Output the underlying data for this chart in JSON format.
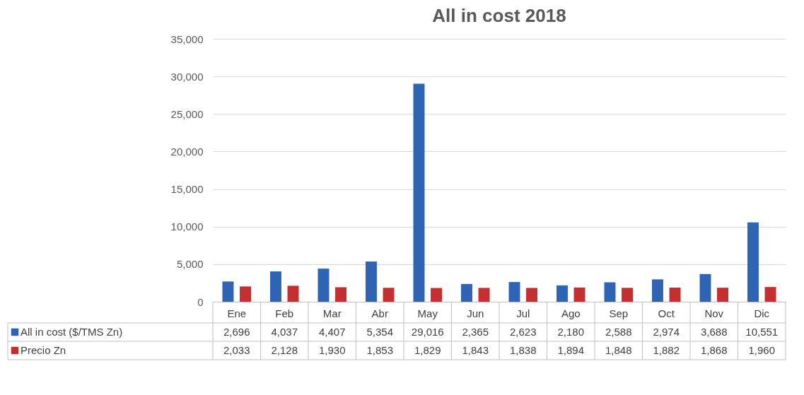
{
  "chart_data": {
    "type": "bar",
    "title": "All in cost 2018",
    "categories": [
      "Ene",
      "Feb",
      "Mar",
      "Abr",
      "May",
      "Jun",
      "Jul",
      "Ago",
      "Sep",
      "Oct",
      "Nov",
      "Dic"
    ],
    "series": [
      {
        "name": "All in cost ($/TMS Zn)",
        "color": "#2f64b5",
        "values": [
          2696,
          4037,
          4407,
          5354,
          29016,
          2365,
          2623,
          2180,
          2588,
          2974,
          3688,
          10551
        ],
        "value_labels": [
          "2,696",
          "4,037",
          "4,407",
          "5,354",
          "29,016",
          "2,365",
          "2,623",
          "2,180",
          "2,588",
          "2,974",
          "3,688",
          "10,551"
        ]
      },
      {
        "name": "Precio Zn",
        "color": "#c42f2f",
        "values": [
          2033,
          2128,
          1930,
          1853,
          1829,
          1843,
          1838,
          1894,
          1848,
          1882,
          1868,
          1960
        ],
        "value_labels": [
          "2,033",
          "2,128",
          "1,930",
          "1,853",
          "1,829",
          "1,843",
          "1,838",
          "1,894",
          "1,848",
          "1,882",
          "1,868",
          "1,960"
        ]
      }
    ],
    "ylim": [
      0,
      35000
    ],
    "yticks": [
      0,
      {
        "value": 5000,
        "label": "5,000"
      },
      {
        "value": 10000,
        "label": "10,000"
      },
      {
        "value": 15000,
        "label": "15,000"
      },
      {
        "value": 20000,
        "label": "20,000"
      },
      {
        "value": 25000,
        "label": "25,000"
      },
      {
        "value": 30000,
        "label": "30,000"
      },
      {
        "value": 35000,
        "label": "35,000"
      }
    ],
    "grid": "y",
    "legend": "bottom"
  }
}
